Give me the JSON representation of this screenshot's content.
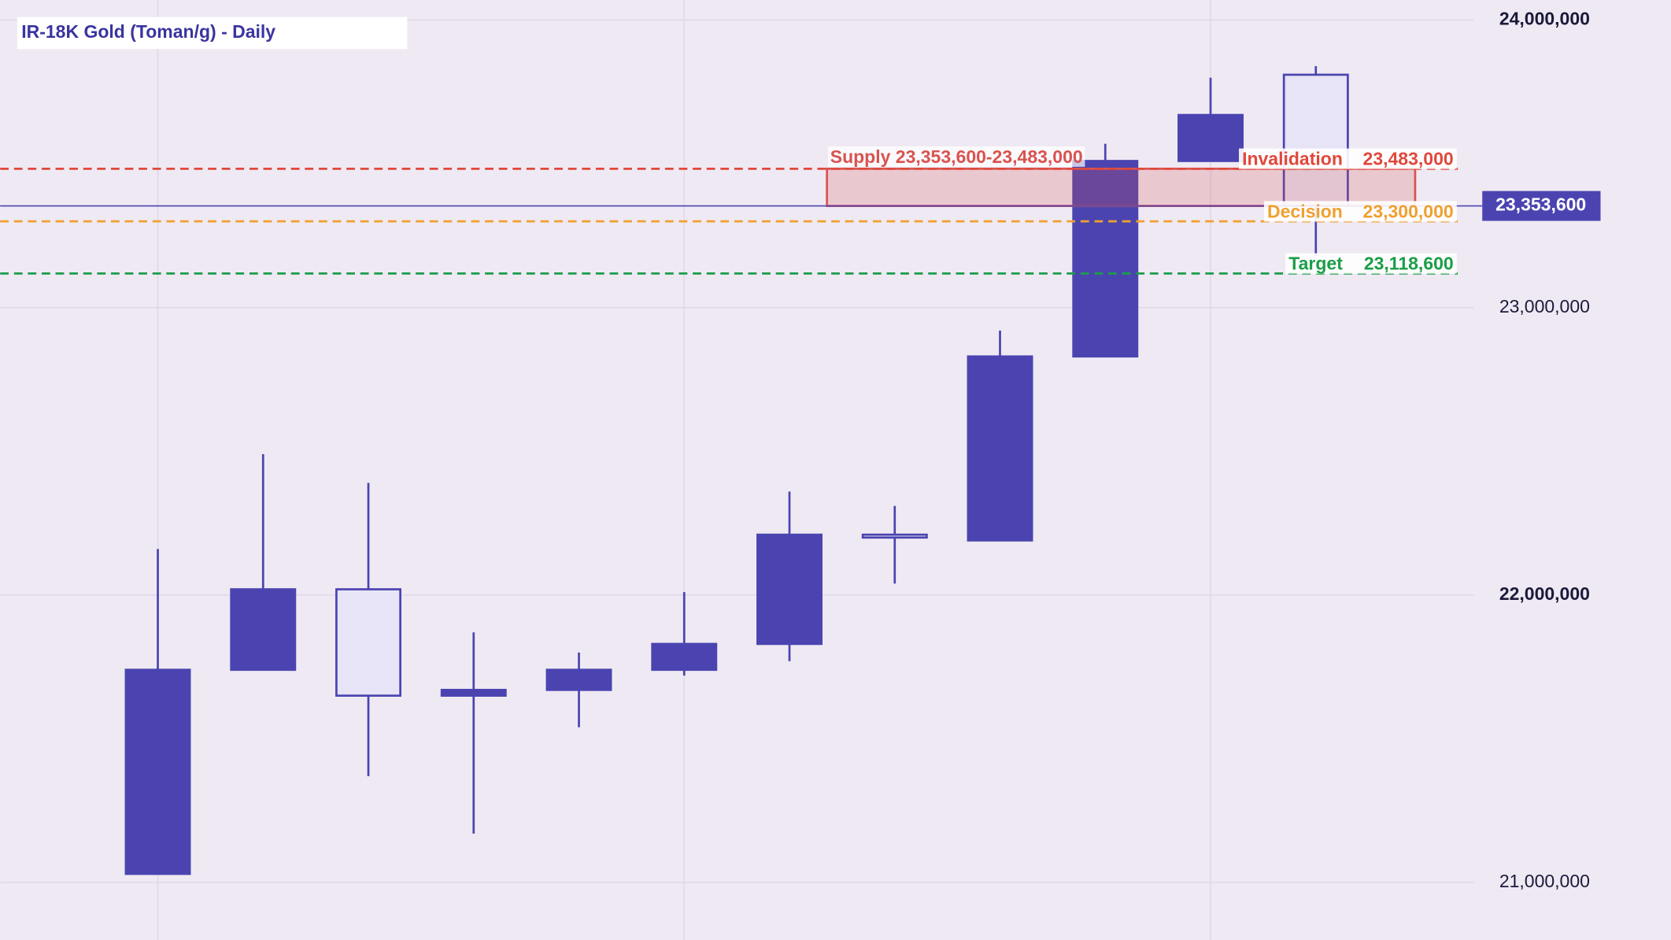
{
  "chart_data": {
    "type": "candlestick",
    "title": "IR-18K  Gold (Toman/g) - Daily",
    "categories": [
      null,
      null,
      null,
      null,
      null,
      null,
      null,
      null,
      null,
      null,
      null,
      null
    ],
    "open": [
      21030000,
      21740000,
      22020000,
      21650000,
      21670000,
      21740000,
      21830000,
      22210000,
      22190000,
      22830000,
      23510000,
      23810000
    ],
    "high": [
      22160000,
      22490000,
      22390000,
      21870000,
      21800000,
      22010000,
      22360000,
      22310000,
      22920000,
      23570000,
      23800000,
      23840000
    ],
    "low": [
      21030000,
      21740000,
      21370000,
      21170000,
      21540000,
      21720000,
      21770000,
      22040000,
      22190000,
      22830000,
      23510000,
      23180000
    ],
    "close": [
      21740000,
      22020000,
      21650000,
      21670000,
      21740000,
      21830000,
      22210000,
      22200000,
      22830000,
      23510000,
      23670000,
      23353600
    ],
    "up_color": "#4b44b0",
    "down_color": "#e6e4f6",
    "ylim": [
      20800000,
      24070000
    ],
    "yticks": [
      {
        "value": 21000000,
        "label": "21,000,000"
      },
      {
        "value": 22000000,
        "label": "22,000,000"
      },
      {
        "value": 23000000,
        "label": "23,000,000"
      },
      {
        "value": 24000000,
        "label": "24,000,000"
      }
    ],
    "grid": true,
    "last_price": {
      "value": 23353600,
      "label": "23,353,600"
    },
    "zone": {
      "label": "Supply 23,353,600-23,483,000",
      "low": 23353600,
      "high": 23483000,
      "color": "#d9534f"
    },
    "levels": [
      {
        "name": "Invalidation",
        "value": 23483000,
        "label": "23,483,000",
        "color": "#e0483b"
      },
      {
        "name": "Decision",
        "value": 23300000,
        "label": "23,300,000",
        "color": "#f0a030"
      },
      {
        "name": "Target",
        "value": 23118600,
        "label": "23,118,600",
        "color": "#1a9e48"
      }
    ]
  }
}
